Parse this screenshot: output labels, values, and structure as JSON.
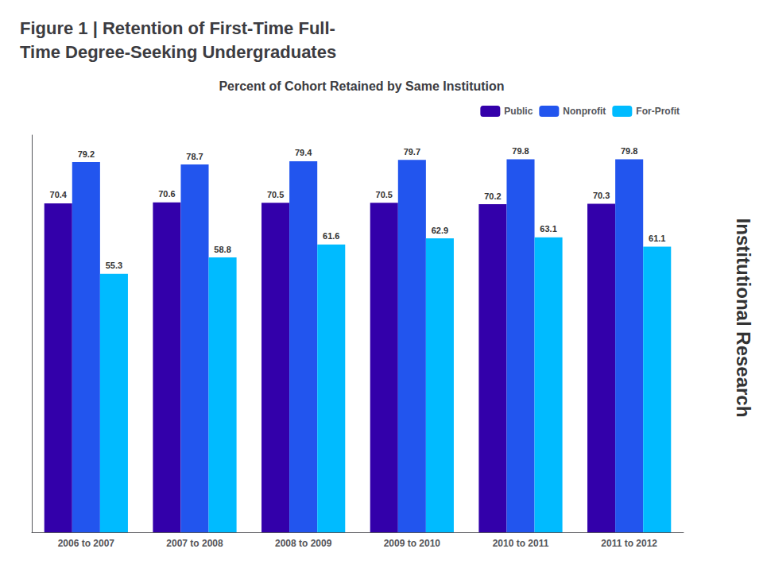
{
  "chart_data": {
    "type": "bar",
    "title": "Figure 1 | Retention of First-Time Full-\nTime Degree-Seeking Undergraduates",
    "subtitle": "Percent of Cohort Retained by Same Institution",
    "annotations": [
      "Institutional Research"
    ],
    "categories": [
      "2006 to 2007",
      "2007 to 2008",
      "2008 to 2009",
      "2009 to 2010",
      "2010 to 2011",
      "2011 to 2012"
    ],
    "series": [
      {
        "name": "Public",
        "color": "#3300AA",
        "values": [
          70.4,
          70.6,
          70.5,
          70.5,
          70.2,
          70.3
        ]
      },
      {
        "name": "Nonprofit",
        "color": "#2255EE",
        "values": [
          79.2,
          78.7,
          79.4,
          79.7,
          79.8,
          79.8
        ]
      },
      {
        "name": "For-Profit",
        "color": "#00BBFF",
        "values": [
          55.3,
          58.8,
          61.6,
          62.9,
          63.1,
          61.1
        ]
      }
    ],
    "ylim": [
      0,
      85
    ],
    "yticks": [],
    "grid": false,
    "tick_labels": "x",
    "data_labels": true,
    "legend": "upper right"
  }
}
